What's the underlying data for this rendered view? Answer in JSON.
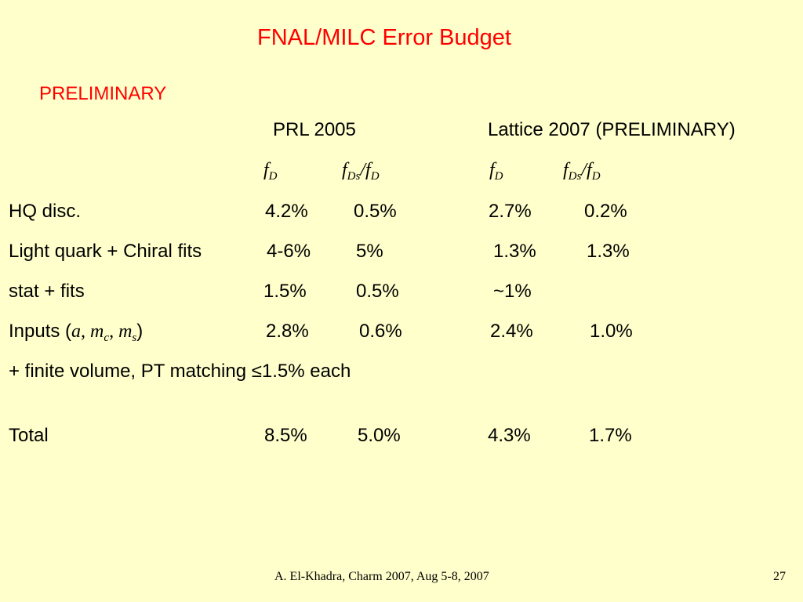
{
  "slide": {
    "title": "FNAL/MILC Error Budget",
    "preliminary": "PRELIMINARY",
    "columns": {
      "prl2005": "PRL 2005",
      "lattice2007": "Lattice 2007 (PRELIMINARY)"
    },
    "subheaders": {
      "fD_base": "f",
      "fD_sub": "D",
      "fDs_base": "f",
      "fDs_sub": "Ds",
      "slash": "/",
      "over_base": "f",
      "over_sub": "D"
    },
    "rows": {
      "hq": {
        "label": "HQ disc.",
        "prl_fD": "4.2%",
        "prl_ratio": "0.5%",
        "lat_fD": "2.7%",
        "lat_ratio": "0.2%"
      },
      "light": {
        "label": "Light quark + Chiral fits",
        "prl_fD": "4-6%",
        "prl_ratio": "5%",
        "lat_fD": "1.3%",
        "lat_ratio": "1.3%"
      },
      "stat": {
        "label": "stat + fits",
        "prl_fD": "1.5%",
        "prl_ratio": "0.5%",
        "lat_fD": "~1%",
        "lat_ratio": ""
      },
      "inputs": {
        "label_prefix": "Inputs (",
        "a": "a, ",
        "m": "m",
        "c": "c",
        "comma": ", ",
        "s": "s",
        "label_suffix": ")",
        "prl_fD": "2.8%",
        "prl_ratio": "0.6%",
        "lat_fD": "2.4%",
        "lat_ratio": "1.0%"
      },
      "finite": {
        "label": "+  finite volume, PT matching   ≤1.5%  each"
      },
      "total": {
        "label": "Total",
        "prl_fD": "8.5%",
        "prl_ratio": "5.0%",
        "lat_fD": "4.3%",
        "lat_ratio": "1.7%"
      }
    },
    "footer": {
      "citation": "A. El-Khadra, Charm 2007, Aug 5-8, 2007",
      "page_number": "27"
    },
    "colors": {
      "background": "#ffffcc",
      "title": "#ff0000",
      "text": "#000000"
    }
  }
}
